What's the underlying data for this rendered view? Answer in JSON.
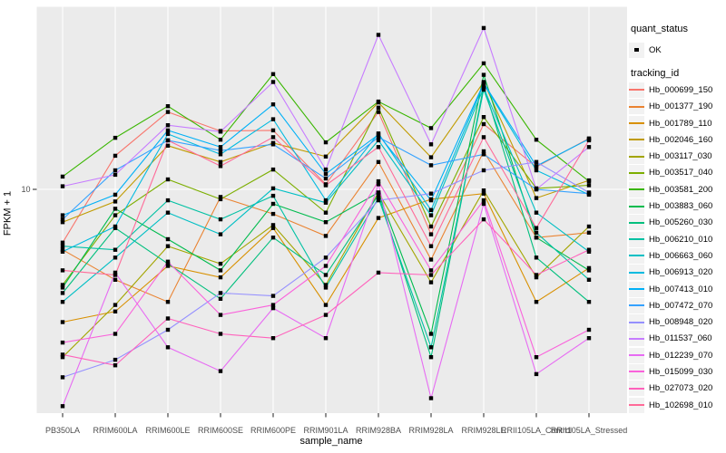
{
  "figure": {
    "background": "#FFFFFF",
    "panel_background": "#EBEBEB",
    "gridline_color": "#FFFFFF",
    "tick_color": "#333333",
    "tick_label_color": "#4D4D4D",
    "marker_color": "#000000",
    "legend_key_background": "#F2F2F2"
  },
  "legend": {
    "quant_status": {
      "title": "quant_status",
      "items": [
        {
          "label": "OK",
          "marker": "black-point"
        }
      ]
    },
    "tracking_id": {
      "title": "tracking_id"
    }
  },
  "chart_data": {
    "type": "line",
    "title": "",
    "xlabel": "sample_name",
    "ylabel": "FPKM + 1",
    "y_scale": "log10",
    "y_ticks": [
      10
    ],
    "y_range_approx": [
      1.15,
      56
    ],
    "grid": true,
    "legend_position": "right",
    "marker": "black-square",
    "categories": [
      "PB350LA",
      "RRIM600LA",
      "RRIM600LE",
      "RRIM600SE",
      "RRIM600PE",
      "RRIM901LA",
      "RRIM928BA",
      "RRIM928LA",
      "RRIM928LE",
      "RRII105LA_Control",
      "RRII105LA_Stressed"
    ],
    "series": [
      {
        "name": "Hb_000699_150",
        "color": "#F8766D",
        "values": [
          6.0,
          13.8,
          21.0,
          17.5,
          17.6,
          10.5,
          21.0,
          6.5,
          18.7,
          12.4,
          16.3
        ]
      },
      {
        "name": "Hb_001377_190",
        "color": "#EA8331",
        "values": [
          5.6,
          4.2,
          3.4,
          9.3,
          7.9,
          6.4,
          13.0,
          5.1,
          14.4,
          6.3,
          6.6
        ]
      },
      {
        "name": "Hb_001789_110",
        "color": "#D89000",
        "values": [
          2.8,
          3.1,
          4.8,
          4.3,
          6.9,
          3.3,
          7.6,
          9.1,
          9.6,
          3.4,
          4.7
        ]
      },
      {
        "name": "Hb_002046_160",
        "color": "#C09B00",
        "values": [
          7.3,
          8.9,
          15.2,
          13.0,
          15.6,
          13.7,
          23.0,
          13.6,
          28.0,
          9.2,
          10.9
        ]
      },
      {
        "name": "Hb_003117_030",
        "color": "#A3A500",
        "values": [
          2.0,
          3.3,
          5.8,
          4.9,
          7.1,
          4.0,
          9.7,
          4.1,
          9.9,
          4.3,
          7.0
        ]
      },
      {
        "name": "Hb_003517_040",
        "color": "#7CAE00",
        "values": [
          4.0,
          7.8,
          11.0,
          9.1,
          12.1,
          8.0,
          21.9,
          7.0,
          20.0,
          10.1,
          10.4
        ]
      },
      {
        "name": "Hb_003581_200",
        "color": "#39B600",
        "values": [
          11.3,
          16.4,
          22.2,
          16.1,
          30.2,
          15.7,
          23.2,
          18.0,
          33.5,
          16.1,
          10.8
        ]
      },
      {
        "name": "Hb_003883_060",
        "color": "#00BB4E",
        "values": [
          3.9,
          8.3,
          6.2,
          4.6,
          8.7,
          7.3,
          9.7,
          2.5,
          30.0,
          6.3,
          4.6
        ]
      },
      {
        "name": "Hb_005260_030",
        "color": "#00BF7D",
        "values": [
          3.7,
          6.9,
          4.9,
          3.5,
          6.3,
          4.4,
          9.5,
          2.0,
          27.0,
          5.2,
          3.4
        ]
      },
      {
        "name": "Hb_006210_010",
        "color": "#00C1A3",
        "values": [
          5.8,
          5.6,
          9.0,
          7.5,
          9.4,
          3.9,
          9.2,
          2.2,
          26.0,
          6.6,
          4.2
        ]
      },
      {
        "name": "Hb_006663_060",
        "color": "#00BFC4",
        "values": [
          3.4,
          5.2,
          8.0,
          6.5,
          10.1,
          8.8,
          16.0,
          7.8,
          26.5,
          8.0,
          5.5
        ]
      },
      {
        "name": "Hb_006913_020",
        "color": "#00BAE0",
        "values": [
          5.5,
          7.0,
          17.0,
          14.0,
          19.6,
          9.0,
          17.1,
          8.2,
          27.5,
          12.0,
          9.5
        ]
      },
      {
        "name": "Hb_007413_010",
        "color": "#00B0F6",
        "values": [
          7.8,
          9.5,
          17.6,
          15.0,
          22.6,
          11.6,
          16.9,
          9.0,
          27.7,
          12.5,
          16.2
        ]
      },
      {
        "name": "Hb_007472_070",
        "color": "#35A2FF",
        "values": [
          7.5,
          12.0,
          16.0,
          14.5,
          15.4,
          11.1,
          16.5,
          12.6,
          14.0,
          10.0,
          9.6
        ]
      },
      {
        "name": "Hb_008948_020",
        "color": "#9590FF",
        "values": [
          1.65,
          1.95,
          2.6,
          3.7,
          3.6,
          5.2,
          9.0,
          9.6,
          12.0,
          13.0,
          9.7
        ]
      },
      {
        "name": "Hb_011537_060",
        "color": "#C77CFF",
        "values": [
          10.3,
          11.5,
          18.5,
          17.4,
          28.0,
          12.1,
          44.0,
          15.4,
          47.0,
          10.0,
          15.0
        ]
      },
      {
        "name": "Hb_012239_070",
        "color": "#E76BF3",
        "values": [
          1.25,
          4.5,
          2.2,
          1.75,
          3.2,
          2.4,
          10.5,
          1.35,
          8.7,
          1.7,
          2.4
        ]
      },
      {
        "name": "Hb_015099_030",
        "color": "#FA62DB",
        "values": [
          2.3,
          2.5,
          5.0,
          3.0,
          3.3,
          4.8,
          10.8,
          4.6,
          9.0,
          2.0,
          2.6
        ]
      },
      {
        "name": "Hb_027073_020",
        "color": "#FF62BC",
        "values": [
          2.05,
          1.85,
          2.9,
          2.5,
          2.4,
          3.0,
          4.5,
          4.4,
          7.5,
          4.4,
          5.6
        ]
      },
      {
        "name": "Hb_102698_010",
        "color": "#FF6A98",
        "values": [
          4.6,
          4.4,
          16.0,
          12.5,
          16.5,
          10.4,
          15.0,
          5.8,
          16.5,
          6.9,
          16.0
        ]
      }
    ]
  }
}
